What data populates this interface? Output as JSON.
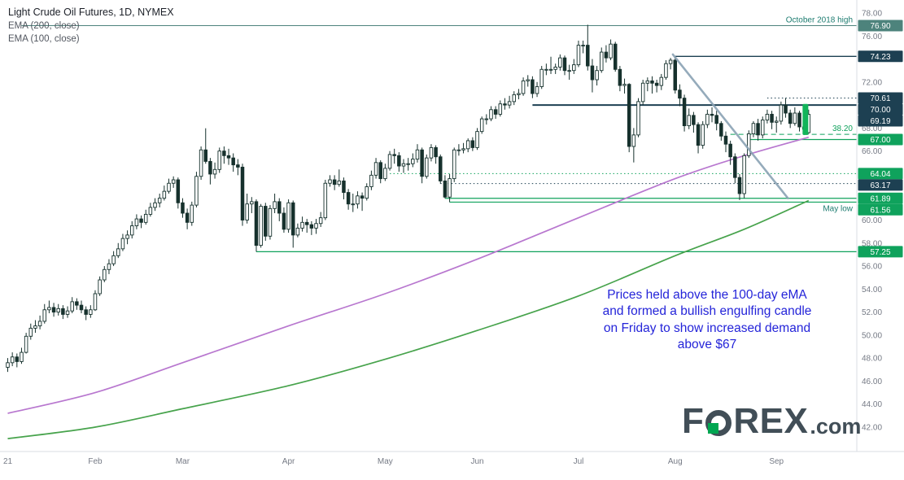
{
  "header": {
    "title": "Light Crude Oil Futures, 1D, NYMEX",
    "legend": [
      "EMA (200, close)",
      "EMA (100, close)"
    ]
  },
  "annotation": {
    "lines": [
      "Prices held above the 100-day eMA",
      "and formed a bullish engulfing candle",
      "on Friday to show increased demand",
      "above $67"
    ]
  },
  "logo": {
    "left": "F",
    "right": "REX",
    "tld": ".com"
  },
  "colors": {
    "navy": "#1d4052",
    "green_line": "#0fa25c",
    "teal_line": "#4d837c",
    "teal_text": "#1d7c70",
    "candle": "#16312d",
    "ema100": "#b877cf",
    "ema200": "#47a34c",
    "trendline": "#8aa2b4",
    "highlight": "#12b45a",
    "blue_text": "#2424d9",
    "axis_text": "#757a85",
    "separator": "#d9dce3"
  },
  "chart_data": {
    "type": "candlestick",
    "title": "Light Crude Oil Futures",
    "interval": "1D",
    "exchange": "NYMEX",
    "ylim": [
      42,
      78
    ],
    "y_ticks": [
      78,
      76,
      74,
      72,
      70,
      68,
      66,
      64,
      62,
      60,
      58,
      56,
      54,
      52,
      50,
      48,
      46,
      44,
      42
    ],
    "months": [
      {
        "label": "21",
        "day": 0
      },
      {
        "label": "Feb",
        "day": 19
      },
      {
        "label": "Mar",
        "day": 38
      },
      {
        "label": "Apr",
        "day": 61
      },
      {
        "label": "May",
        "day": 82
      },
      {
        "label": "Jun",
        "day": 102
      },
      {
        "label": "Jul",
        "day": 124
      },
      {
        "label": "Aug",
        "day": 145
      },
      {
        "label": "Sep",
        "day": 167
      }
    ],
    "candles": [
      [
        47.2,
        48.0,
        46.8,
        47.6
      ],
      [
        47.6,
        48.5,
        47.3,
        48.1
      ],
      [
        48.1,
        48.4,
        47.2,
        47.7
      ],
      [
        47.7,
        48.9,
        47.5,
        48.5
      ],
      [
        48.5,
        50.2,
        48.4,
        49.9
      ],
      [
        49.9,
        51.0,
        49.6,
        50.6
      ],
      [
        50.6,
        51.3,
        50.2,
        50.8
      ],
      [
        50.8,
        51.7,
        50.5,
        51.2
      ],
      [
        51.2,
        52.7,
        51.0,
        52.2
      ],
      [
        52.2,
        53.0,
        51.9,
        52.4
      ],
      [
        52.4,
        52.8,
        51.6,
        52.0
      ],
      [
        52.0,
        52.7,
        51.7,
        52.3
      ],
      [
        52.3,
        52.6,
        51.4,
        51.8
      ],
      [
        51.8,
        52.5,
        51.5,
        52.1
      ],
      [
        52.1,
        53.3,
        51.9,
        52.9
      ],
      [
        52.9,
        53.2,
        52.2,
        52.6
      ],
      [
        52.6,
        53.0,
        51.9,
        52.2
      ],
      [
        52.2,
        52.5,
        51.3,
        51.8
      ],
      [
        51.8,
        52.6,
        51.5,
        52.2
      ],
      [
        52.2,
        53.9,
        52.1,
        53.6
      ],
      [
        53.6,
        55.1,
        53.4,
        54.8
      ],
      [
        54.8,
        56.0,
        54.6,
        55.7
      ],
      [
        55.7,
        56.6,
        55.3,
        56.2
      ],
      [
        56.2,
        57.3,
        56.0,
        56.9
      ],
      [
        56.9,
        58.0,
        56.7,
        57.5
      ],
      [
        57.5,
        58.8,
        57.3,
        58.4
      ],
      [
        58.4,
        59.1,
        57.9,
        58.7
      ],
      [
        58.7,
        59.9,
        58.4,
        59.5
      ],
      [
        59.5,
        60.5,
        59.2,
        60.1
      ],
      [
        60.1,
        60.4,
        59.3,
        59.8
      ],
      [
        59.8,
        60.9,
        59.6,
        60.5
      ],
      [
        60.5,
        61.5,
        60.3,
        61.1
      ],
      [
        61.1,
        61.9,
        60.8,
        61.5
      ],
      [
        61.5,
        62.3,
        61.1,
        61.9
      ],
      [
        61.9,
        63.0,
        61.7,
        62.5
      ],
      [
        62.5,
        63.6,
        62.3,
        63.2
      ],
      [
        63.2,
        63.8,
        62.8,
        63.5
      ],
      [
        63.5,
        63.7,
        61.0,
        61.5
      ],
      [
        61.5,
        61.9,
        60.2,
        60.6
      ],
      [
        60.6,
        61.0,
        59.2,
        59.8
      ],
      [
        59.8,
        61.6,
        59.5,
        61.3
      ],
      [
        61.3,
        64.2,
        61.1,
        63.8
      ],
      [
        63.8,
        66.4,
        63.5,
        66.1
      ],
      [
        66.1,
        67.98,
        64.9,
        65.1
      ],
      [
        65.1,
        65.4,
        63.1,
        64.0
      ],
      [
        64.0,
        65.0,
        63.6,
        64.4
      ],
      [
        64.4,
        66.3,
        64.1,
        66.0
      ],
      [
        66.0,
        66.4,
        64.9,
        65.6
      ],
      [
        65.6,
        66.2,
        64.8,
        65.4
      ],
      [
        65.4,
        65.8,
        64.2,
        64.8
      ],
      [
        64.8,
        65.3,
        63.9,
        64.6
      ],
      [
        64.6,
        64.9,
        59.5,
        60.0
      ],
      [
        60.0,
        62.3,
        59.7,
        61.4
      ],
      [
        61.4,
        62.0,
        60.6,
        61.6
      ],
      [
        61.6,
        61.8,
        57.25,
        57.8
      ],
      [
        57.8,
        61.4,
        57.6,
        61.2
      ],
      [
        61.2,
        61.5,
        58.2,
        58.6
      ],
      [
        58.6,
        61.3,
        58.3,
        61.0
      ],
      [
        61.0,
        62.3,
        60.6,
        61.6
      ],
      [
        61.6,
        61.9,
        59.9,
        60.6
      ],
      [
        60.6,
        61.1,
        58.9,
        59.2
      ],
      [
        59.2,
        61.8,
        58.9,
        61.5
      ],
      [
        61.5,
        61.7,
        57.6,
        58.7
      ],
      [
        58.7,
        59.7,
        58.5,
        59.3
      ],
      [
        59.3,
        60.3,
        59.0,
        59.8
      ],
      [
        59.8,
        60.1,
        58.9,
        59.6
      ],
      [
        59.6,
        59.9,
        58.7,
        59.3
      ],
      [
        59.3,
        60.1,
        58.8,
        59.7
      ],
      [
        59.7,
        60.7,
        59.4,
        60.2
      ],
      [
        60.2,
        63.5,
        60.0,
        63.2
      ],
      [
        63.2,
        63.9,
        62.9,
        63.5
      ],
      [
        63.5,
        63.9,
        62.6,
        63.1
      ],
      [
        63.1,
        64.4,
        62.9,
        63.4
      ],
      [
        63.4,
        63.7,
        61.8,
        62.4
      ],
      [
        62.4,
        62.7,
        60.9,
        61.4
      ],
      [
        61.4,
        62.3,
        60.7,
        61.4
      ],
      [
        61.4,
        62.5,
        61.0,
        62.1
      ],
      [
        62.1,
        62.4,
        60.8,
        61.9
      ],
      [
        61.9,
        63.2,
        61.7,
        62.9
      ],
      [
        62.9,
        64.3,
        62.6,
        63.9
      ],
      [
        63.9,
        65.4,
        63.6,
        65.0
      ],
      [
        65.0,
        65.2,
        63.2,
        63.6
      ],
      [
        63.6,
        64.9,
        63.4,
        64.5
      ],
      [
        64.5,
        66.0,
        64.3,
        65.7
      ],
      [
        65.7,
        66.2,
        64.9,
        65.6
      ],
      [
        65.6,
        65.9,
        64.2,
        64.7
      ],
      [
        64.7,
        65.3,
        64.1,
        64.9
      ],
      [
        64.9,
        65.4,
        64.3,
        64.9
      ],
      [
        64.9,
        65.8,
        64.6,
        65.3
      ],
      [
        65.3,
        66.6,
        65.0,
        66.1
      ],
      [
        66.1,
        66.3,
        63.2,
        63.8
      ],
      [
        63.8,
        65.7,
        63.6,
        65.4
      ],
      [
        65.4,
        66.6,
        65.1,
        66.3
      ],
      [
        66.3,
        66.5,
        64.9,
        65.5
      ],
      [
        65.5,
        65.7,
        63.17,
        63.4
      ],
      [
        63.4,
        63.9,
        61.89,
        62.0
      ],
      [
        62.0,
        64.0,
        61.56,
        63.6
      ],
      [
        63.6,
        66.3,
        63.3,
        66.1
      ],
      [
        66.1,
        66.6,
        65.6,
        66.1
      ],
      [
        66.1,
        66.7,
        65.8,
        66.2
      ],
      [
        66.2,
        67.1,
        65.9,
        66.9
      ],
      [
        66.9,
        67.2,
        66.0,
        66.3
      ],
      [
        66.3,
        68.0,
        66.1,
        67.7
      ],
      [
        67.7,
        69.0,
        67.5,
        68.8
      ],
      [
        68.8,
        69.2,
        68.3,
        68.8
      ],
      [
        68.8,
        69.9,
        68.6,
        69.6
      ],
      [
        69.6,
        69.9,
        68.8,
        69.2
      ],
      [
        69.2,
        70.4,
        69.0,
        70.1
      ],
      [
        70.1,
        70.6,
        69.6,
        70.0
      ],
      [
        70.0,
        70.8,
        69.7,
        70.3
      ],
      [
        70.3,
        71.2,
        70.0,
        70.9
      ],
      [
        70.9,
        71.4,
        70.5,
        71.0
      ],
      [
        71.0,
        72.4,
        70.8,
        72.1
      ],
      [
        72.1,
        72.6,
        71.6,
        72.2
      ],
      [
        72.2,
        72.5,
        70.6,
        71.0
      ],
      [
        71.0,
        72.0,
        70.7,
        71.6
      ],
      [
        71.6,
        73.4,
        71.4,
        73.1
      ],
      [
        73.1,
        73.6,
        72.6,
        73.1
      ],
      [
        73.1,
        74.2,
        72.7,
        73.1
      ],
      [
        73.1,
        73.6,
        72.7,
        73.3
      ],
      [
        73.3,
        74.4,
        73.0,
        74.1
      ],
      [
        74.1,
        74.3,
        72.6,
        73.0
      ],
      [
        73.0,
        73.5,
        72.2,
        73.0
      ],
      [
        73.0,
        74.0,
        72.7,
        73.5
      ],
      [
        73.5,
        75.6,
        73.3,
        75.2
      ],
      [
        75.2,
        75.6,
        74.5,
        75.2
      ],
      [
        75.2,
        76.98,
        73.0,
        73.4
      ],
      [
        73.4,
        74.0,
        71.1,
        72.2
      ],
      [
        72.2,
        73.4,
        71.7,
        73.0
      ],
      [
        73.0,
        75.0,
        72.8,
        74.6
      ],
      [
        74.6,
        75.2,
        73.7,
        74.1
      ],
      [
        74.1,
        75.7,
        73.9,
        75.3
      ],
      [
        75.3,
        75.5,
        72.9,
        73.1
      ],
      [
        73.1,
        73.4,
        71.2,
        71.7
      ],
      [
        71.7,
        72.3,
        71.0,
        71.8
      ],
      [
        71.8,
        71.9,
        65.9,
        66.4
      ],
      [
        66.4,
        68.0,
        65.01,
        67.4
      ],
      [
        67.4,
        70.6,
        67.2,
        70.3
      ],
      [
        70.3,
        72.2,
        70.0,
        71.9
      ],
      [
        71.9,
        72.4,
        71.2,
        72.1
      ],
      [
        72.1,
        72.5,
        71.0,
        71.9
      ],
      [
        71.9,
        72.2,
        71.1,
        71.7
      ],
      [
        71.7,
        72.7,
        71.3,
        72.4
      ],
      [
        72.4,
        73.9,
        72.2,
        73.6
      ],
      [
        73.6,
        74.1,
        73.1,
        73.9
      ],
      [
        73.9,
        74.23,
        71.0,
        71.3
      ],
      [
        71.3,
        71.8,
        69.9,
        70.6
      ],
      [
        70.6,
        70.9,
        67.7,
        68.2
      ],
      [
        68.2,
        69.7,
        67.9,
        69.1
      ],
      [
        69.1,
        69.4,
        67.6,
        68.3
      ],
      [
        68.3,
        68.5,
        65.8,
        66.5
      ],
      [
        66.5,
        68.6,
        66.2,
        68.3
      ],
      [
        68.3,
        69.6,
        68.0,
        69.2
      ],
      [
        69.2,
        69.8,
        68.5,
        69.1
      ],
      [
        69.1,
        69.5,
        67.8,
        68.4
      ],
      [
        68.4,
        68.6,
        66.9,
        67.3
      ],
      [
        67.3,
        67.7,
        65.9,
        66.6
      ],
      [
        66.6,
        66.9,
        64.8,
        65.5
      ],
      [
        65.5,
        65.8,
        63.2,
        63.7
      ],
      [
        63.7,
        64.0,
        61.74,
        62.3
      ],
      [
        62.3,
        65.8,
        61.9,
        65.6
      ],
      [
        65.6,
        67.8,
        65.4,
        67.5
      ],
      [
        67.5,
        68.6,
        67.2,
        68.4
      ],
      [
        68.4,
        68.8,
        66.9,
        67.4
      ],
      [
        67.4,
        69.0,
        67.1,
        68.7
      ],
      [
        68.7,
        69.6,
        68.4,
        69.2
      ],
      [
        69.2,
        69.5,
        67.9,
        68.5
      ],
      [
        68.5,
        69.0,
        67.6,
        68.6
      ],
      [
        68.6,
        70.3,
        68.3,
        70.0
      ],
      [
        70.0,
        70.61,
        68.9,
        69.3
      ],
      [
        69.3,
        69.6,
        68.0,
        68.4
      ],
      [
        68.4,
        69.8,
        68.2,
        69.3
      ],
      [
        69.3,
        69.5,
        67.7,
        68.1
      ],
      [
        68.1,
        68.3,
        67.4,
        67.9
      ],
      [
        67.6,
        69.6,
        67.5,
        69.19
      ]
    ],
    "ema_100": {
      "name": "EMA (100, close)",
      "points": [
        [
          0,
          43.2
        ],
        [
          19,
          45.0
        ],
        [
          38,
          47.6
        ],
        [
          61,
          50.8
        ],
        [
          82,
          53.6
        ],
        [
          102,
          56.6
        ],
        [
          124,
          60.2
        ],
        [
          145,
          63.6
        ],
        [
          160,
          65.6
        ],
        [
          174,
          67.2
        ]
      ]
    },
    "ema_200": {
      "name": "EMA (200, close)",
      "points": [
        [
          0,
          41.0
        ],
        [
          19,
          42.0
        ],
        [
          38,
          43.6
        ],
        [
          61,
          45.6
        ],
        [
          82,
          47.9
        ],
        [
          102,
          50.4
        ],
        [
          124,
          53.4
        ],
        [
          145,
          56.9
        ],
        [
          160,
          59.2
        ],
        [
          174,
          61.7
        ]
      ]
    },
    "levels": [
      {
        "price": 76.9,
        "badge": "76.90",
        "label": "October 2018 high",
        "label_side": "above",
        "label_color": "teal_text",
        "color": "teal_line",
        "style": "solid",
        "from_day": 3,
        "width": 1
      },
      {
        "price": 74.23,
        "badge": "74.23",
        "color": "navy",
        "style": "solid",
        "from_day": 145,
        "width": 1.3
      },
      {
        "price": 70.61,
        "badge": "70.61",
        "color": "navy",
        "style": "dotted",
        "from_day": 165,
        "width": 1
      },
      {
        "price": 70.0,
        "badge": "70.00",
        "color": "navy",
        "style": "solid",
        "from_day": 114,
        "width": 2
      },
      {
        "price": 69.19,
        "badge": "69.19",
        "color": "navy",
        "style": "none"
      },
      {
        "price": 67.45,
        "label": "38.20",
        "label_side": "above",
        "label_color": "green_line",
        "color": "green_line",
        "style": "dashed",
        "from_day": 157,
        "width": 1
      },
      {
        "price": 67.0,
        "badge": "67.00",
        "color": "green_line",
        "style": "solid",
        "from_day": 161,
        "width": 1.2
      },
      {
        "price": 64.04,
        "badge": "64.04",
        "color": "green_line",
        "style": "dotted",
        "from_day": 83,
        "width": 1
      },
      {
        "price": 63.17,
        "badge": "63.17",
        "color": "navy",
        "style": "dotted",
        "from_day": 94,
        "width": 1
      },
      {
        "price": 61.89,
        "badge": "61.89",
        "color": "green_line",
        "style": "solid",
        "from_day": 95,
        "width": 1.2
      },
      {
        "price": 61.56,
        "badge": "61.56",
        "label": "May low",
        "label_side": "below",
        "label_color": "teal_text",
        "color": "green_line",
        "style": "solid",
        "from_day": 96,
        "width": 1.2
      },
      {
        "price": 57.25,
        "badge": "57.25",
        "color": "green_line",
        "style": "solid",
        "from_day": 54,
        "width": 1.2
      }
    ],
    "trendline": {
      "from": [
        144.5,
        74.4
      ],
      "to": [
        169.5,
        61.9
      ]
    },
    "engulfing_marker": {
      "day": 173.3,
      "from": 67.4,
      "to": 70.1
    },
    "last_price": "69.19"
  }
}
